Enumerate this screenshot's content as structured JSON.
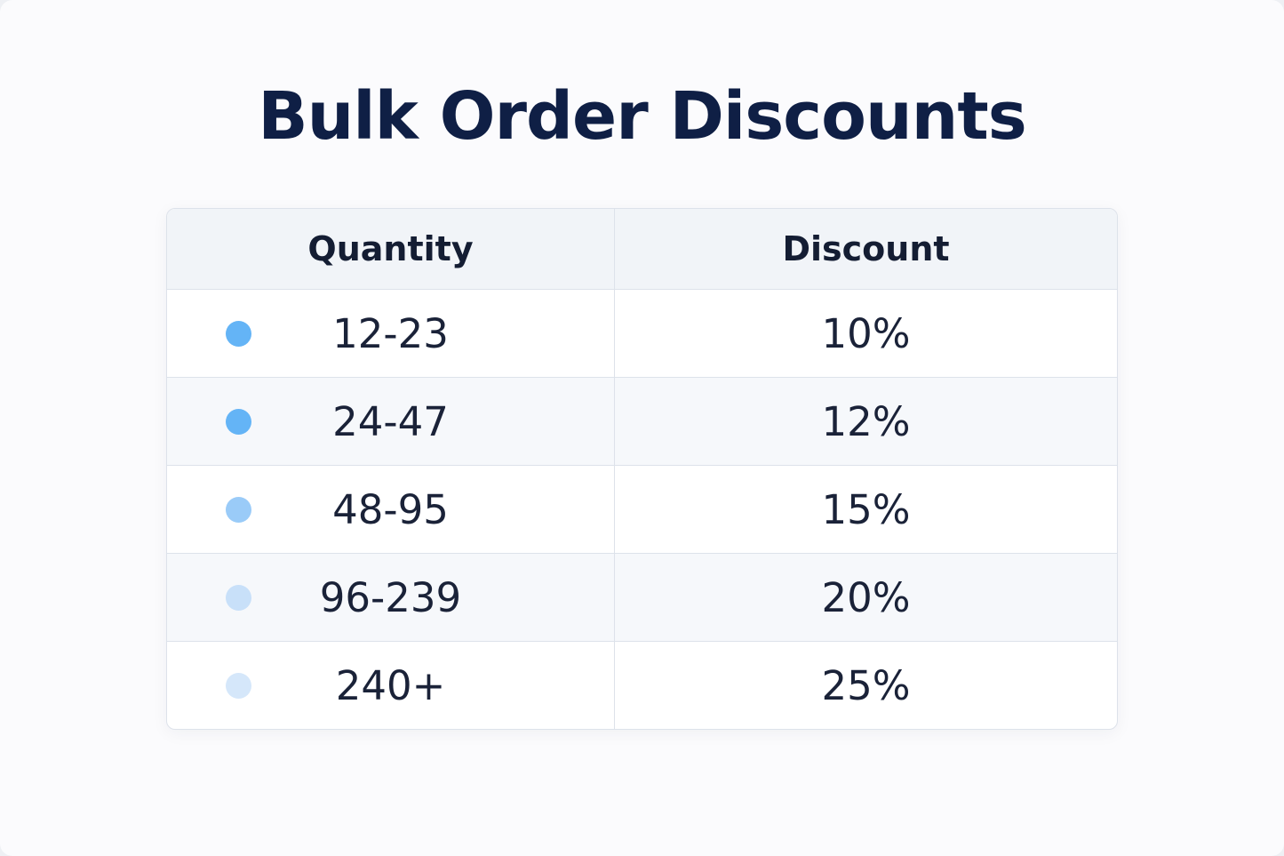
{
  "title": "Bulk Order Discounts",
  "table": {
    "headers": [
      "Quantity",
      "Discount"
    ],
    "rows": [
      [
        "12-23",
        "10%"
      ],
      [
        "24-47",
        "12%"
      ],
      [
        "48-95",
        "15%"
      ],
      [
        "96-239",
        "20%"
      ],
      [
        "240+",
        "25%"
      ]
    ]
  }
}
